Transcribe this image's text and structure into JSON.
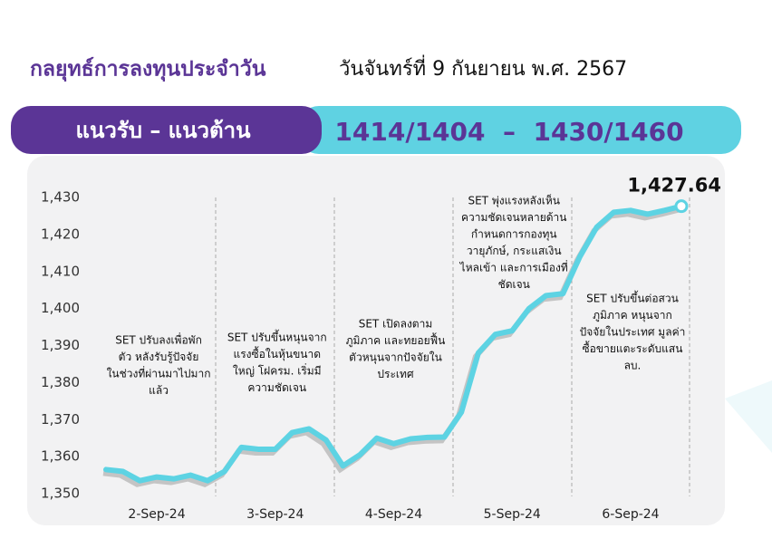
{
  "header": {
    "title": "กลยุทธ์การลงทุนประจำวัน",
    "date": "วันจันทร์ที่ 9 กันยายน พ.ศ. 2567"
  },
  "banner": {
    "label": "แนวรับ – แนวต้าน",
    "levels": "1414/1404  –  1430/1460"
  },
  "chart_data": {
    "type": "line",
    "categories": [
      null,
      null,
      null,
      "2-Sep-24",
      null,
      null,
      null,
      null,
      null,
      null,
      "3-Sep-24",
      null,
      null,
      null,
      null,
      null,
      null,
      "4-Sep-24",
      null,
      null,
      null,
      null,
      null,
      null,
      "5-Sep-24",
      null,
      null,
      null,
      null,
      null,
      null,
      "6-Sep-24",
      null,
      null,
      null
    ],
    "series": [
      {
        "name": "SET",
        "color": "#5dd3e3",
        "values": [
          1356.5,
          1356,
          1353.5,
          1354.5,
          1354,
          1355,
          1353.5,
          1356,
          1362.5,
          1362,
          1362,
          1366.5,
          1367.5,
          1364.5,
          1357.5,
          1360.5,
          1365,
          1363.5,
          1364.8,
          1365.2,
          1365.3,
          1372,
          1388,
          1393,
          1394,
          1400,
          1403.5,
          1404,
          1414,
          1422,
          1426,
          1426.5,
          1425.5,
          1426.5,
          1427.64
        ],
        "value_labels": [
          null,
          null,
          null,
          null,
          null,
          null,
          null,
          null,
          null,
          null,
          null,
          null,
          null,
          null,
          null,
          null,
          null,
          null,
          null,
          null,
          null,
          null,
          null,
          null,
          null,
          null,
          null,
          null,
          null,
          null,
          null,
          null,
          null,
          null,
          "1,427.64"
        ]
      }
    ],
    "ylim": [
      1350,
      1430
    ],
    "yticks": [
      {
        "value": 1350,
        "label": "1,350"
      },
      {
        "value": 1360,
        "label": "1,360"
      },
      {
        "value": 1370,
        "label": "1,370"
      },
      {
        "value": 1380,
        "label": "1,380"
      },
      {
        "value": 1390,
        "label": "1,390"
      },
      {
        "value": 1400,
        "label": "1,400"
      },
      {
        "value": 1410,
        "label": "1,410"
      },
      {
        "value": 1420,
        "label": "1,420"
      },
      {
        "value": 1430,
        "label": "1,430"
      }
    ],
    "annotations": [
      [
        "SET ปรับลงเพื่อพัก",
        "ตัว หลังรับรู้ปัจจัย",
        "ในช่วงที่ผ่านมาไปมาก",
        "แล้ว"
      ],
      [
        "SET ปรับขึ้นหนุนจาก",
        "แรงซื้อในหุ้นขนาด",
        "ใหญ่ โฝครม. เริ่มมี",
        "ความชัดเจน"
      ],
      [
        "SET เปิดลงตาม",
        "ภูมิภาค และทยอยฟื้น",
        "ตัวหนุนจากปัจจัยใน",
        "ประเทศ"
      ],
      [
        "SET พุ่งแรงหลังเห็น",
        "ความชัดเจนหลายด้าน",
        "กำหนดการกองทุน",
        "วายุภักษ์, กระแสเงิน",
        "ไหลเข้า และการเมืองที่",
        "ชัดเจน"
      ],
      [
        "SET ปรับขึ้นต่อสวน",
        "ภูมิภาค หนุนจาก",
        "ปัจจัยในประเทศ มูลค่า",
        "ซื้อขายแตะระดับแสน",
        "ลบ."
      ]
    ]
  }
}
